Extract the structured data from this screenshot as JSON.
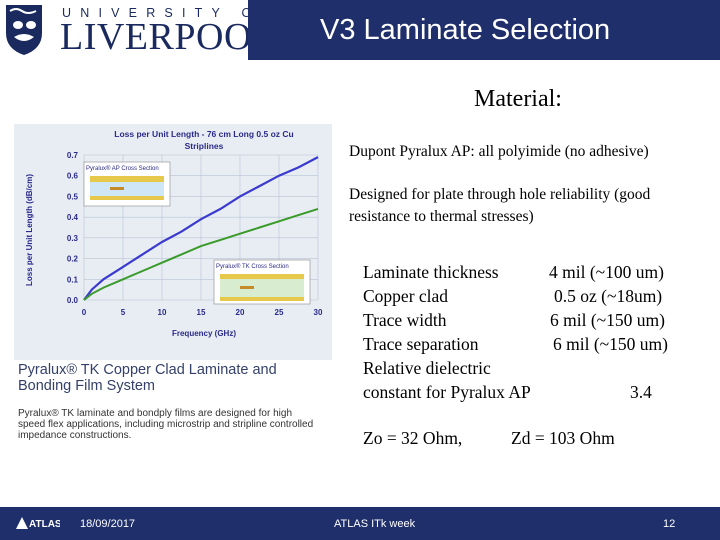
{
  "header": {
    "university_top": "UNIVERSITY OF",
    "university_name": "LIVERPOOL",
    "slide_title": "V3  Laminate Selection"
  },
  "content": {
    "material_heading": "Material:",
    "material_line": "Dupont Pyralux AP:   all polyimide (no adhesive)",
    "design_note": "Designed for plate through hole reliability (good resistance to thermal stresses)",
    "specs": [
      {
        "label": "Laminate thickness",
        "value": "4 mil (~100 um)"
      },
      {
        "label": "Copper clad",
        "value": "0.5 oz (~18um)"
      },
      {
        "label": "Trace width",
        "value": "6 mil (~150 um)"
      },
      {
        "label": "Trace separation",
        "value": "6 mil (~150 um)"
      },
      {
        "label": "Relative dielectric",
        "value": ""
      },
      {
        "label": "constant for Pyralux AP",
        "value": "3.4"
      }
    ],
    "zo": "Zo  = 32 Ohm,",
    "zd": "Zd = 103 Ohm"
  },
  "figure": {
    "chart_title_line1": "Loss per Unit Length - 76 cm Long 0.5 oz Cu",
    "chart_title_line2": "Striplines",
    "ylabel": "Loss per Unit Length (dB/cm)",
    "xlabel": "Frequency (GHz)",
    "inset_ap_label": "Pyralux® AP Cross Section",
    "inset_tk_label": "Pyralux® TK Cross Section",
    "caption_title": "Pyralux® TK Copper Clad Laminate and Bonding Film System",
    "caption_text": "Pyralux® TK laminate and bondply films are designed for high speed flex applications, including microstrip and stripline controlled impedance constructions."
  },
  "chart_data": {
    "type": "line",
    "title": "Loss per Unit Length - 76 cm Long 0.5 oz Cu Striplines",
    "xlabel": "Frequency (GHz)",
    "ylabel": "Loss per Unit Length (dB/cm)",
    "x_ticks": [
      "0",
      "5",
      "10",
      "15",
      "20",
      "25",
      "30"
    ],
    "y_ticks": [
      "0.0",
      "0.1",
      "0.2",
      "0.3",
      "0.4",
      "0.5",
      "0.6",
      "0.7"
    ],
    "xlim": [
      0,
      30
    ],
    "ylim": [
      0,
      0.7
    ],
    "grid": true,
    "series": [
      {
        "color": "#3a3ad0",
        "x": [
          0,
          1,
          2.5,
          5,
          7.5,
          10,
          12.5,
          15,
          17.5,
          20,
          22.5,
          25,
          27.5,
          30
        ],
        "y": [
          0,
          0.05,
          0.1,
          0.16,
          0.22,
          0.28,
          0.33,
          0.39,
          0.44,
          0.5,
          0.55,
          0.6,
          0.64,
          0.69
        ]
      },
      {
        "color": "#3a9a2a",
        "x": [
          0,
          1,
          2.5,
          5,
          7.5,
          10,
          12.5,
          15,
          17.5,
          20,
          22.5,
          25,
          27.5,
          30
        ],
        "y": [
          0,
          0.03,
          0.06,
          0.1,
          0.14,
          0.18,
          0.22,
          0.26,
          0.29,
          0.32,
          0.35,
          0.38,
          0.41,
          0.44
        ]
      }
    ]
  },
  "footer": {
    "date": "18/09/2017",
    "event": "ATLAS ITk week",
    "page": "12"
  }
}
